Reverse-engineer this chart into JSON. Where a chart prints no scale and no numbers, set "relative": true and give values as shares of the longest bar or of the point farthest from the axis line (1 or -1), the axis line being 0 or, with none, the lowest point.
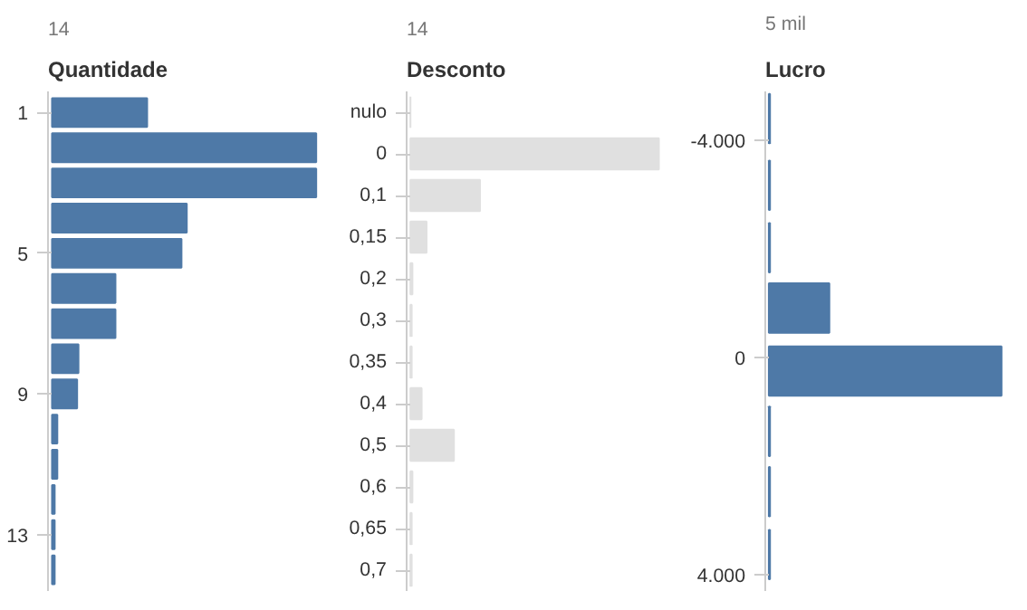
{
  "chart_data": [
    {
      "type": "bar",
      "orientation": "horizontal",
      "relative": true,
      "title": "Quantidade",
      "subtitle": "14",
      "color": "#4e79a7",
      "x": [
        1,
        2,
        3,
        4,
        5,
        6,
        7,
        8,
        9,
        10,
        11,
        12,
        13,
        14
      ],
      "values": [
        0.36,
        1.0,
        1.0,
        0.51,
        0.49,
        0.24,
        0.24,
        0.1,
        0.095,
        0.02,
        0.02,
        0.01,
        0.01,
        0.01
      ],
      "ylim": [
        14.6,
        0.4
      ],
      "yticks": [
        1,
        5,
        9,
        13
      ],
      "grid": false
    },
    {
      "type": "bar",
      "orientation": "horizontal",
      "relative": true,
      "title": "Desconto",
      "subtitle": "14",
      "color": "#e0e0e0",
      "categories": [
        "nulo",
        "0",
        "0,1",
        "0,15",
        "0,2",
        "0,3",
        "0,35",
        "0,4",
        "0,5",
        "0,6",
        "0,65",
        "0,7"
      ],
      "values": [
        0,
        1.0,
        0.28,
        0.065,
        0.008,
        0.005,
        0.005,
        0.045,
        0.175,
        0.008,
        0.005,
        0.005
      ],
      "grid": false
    },
    {
      "type": "bar",
      "orientation": "horizontal",
      "relative": true,
      "title": "Lucro",
      "subtitle": "5 mil",
      "color": "#4e79a7",
      "x": [
        -4400,
        -3170,
        -2020,
        -910,
        250,
        1360,
        2470,
        3630
      ],
      "values": [
        0.005,
        0.005,
        0.005,
        0.26,
        1.0,
        0.005,
        0.005,
        0.005
      ],
      "ylim": [
        4300,
        -4900
      ],
      "yticks": [
        {
          "value": -4000,
          "label": "-4.000"
        },
        0,
        {
          "value": 4000,
          "label": "4.000"
        }
      ],
      "grid": false
    }
  ]
}
